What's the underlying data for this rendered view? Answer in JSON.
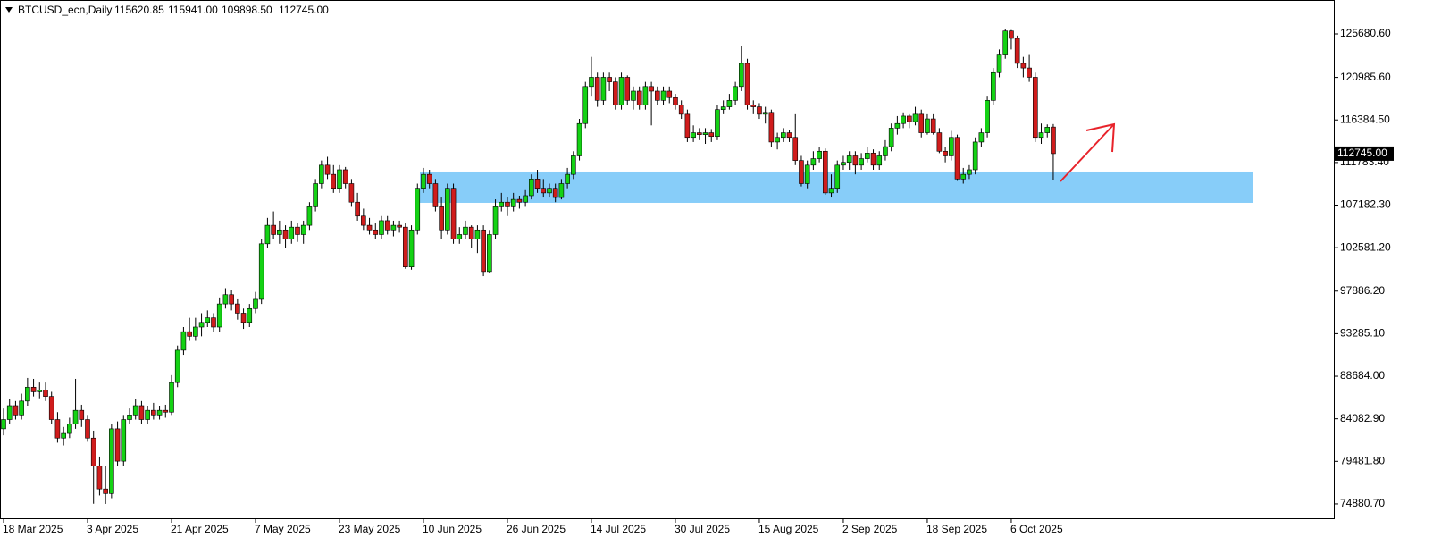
{
  "chart_data": {
    "type": "candlestick",
    "symbol": "BTCUSD_ecn,Daily",
    "last_bar_labels": [
      "115620.85",
      "115941.00",
      "109898.50",
      "112745.00"
    ],
    "up_color": "#14d214",
    "down_color": "#d01c1c",
    "ylim": [
      73330,
      129350
    ],
    "yticks": [
      {
        "value": 125680.6,
        "label": "125680.60"
      },
      {
        "value": 120985.6,
        "label": "120985.60"
      },
      {
        "value": 116384.5,
        "label": "116384.50"
      },
      {
        "value": 111783.4,
        "label": "111783.40"
      },
      {
        "value": 107182.3,
        "label": "107182.30"
      },
      {
        "value": 102581.2,
        "label": "102581.20"
      },
      {
        "value": 97886.2,
        "label": "97886.20"
      },
      {
        "value": 93285.1,
        "label": "93285.10"
      },
      {
        "value": 88684,
        "label": "88684.00"
      },
      {
        "value": 84082.9,
        "label": "84082.90"
      },
      {
        "value": 79481.8,
        "label": "79481.80"
      },
      {
        "value": 74880.7,
        "label": "74880.70"
      }
    ],
    "xticks": [
      {
        "value": 0,
        "label": "18 Mar 2025"
      },
      {
        "value": 14,
        "label": "3 Apr 2025"
      },
      {
        "value": 28,
        "label": "21 Apr 2025"
      },
      {
        "value": 42,
        "label": "7 May 2025"
      },
      {
        "value": 56,
        "label": "23 May 2025"
      },
      {
        "value": 70,
        "label": "10 Jun 2025"
      },
      {
        "value": 84,
        "label": "26 Jun 2025"
      },
      {
        "value": 98,
        "label": "14 Jul 2025"
      },
      {
        "value": 112,
        "label": "30 Jul 2025"
      },
      {
        "value": 126,
        "label": "15 Aug 2025"
      },
      {
        "value": 140,
        "label": "2 Sep 2025"
      },
      {
        "value": 154,
        "label": "18 Sep 2025"
      },
      {
        "value": 168,
        "label": "6 Oct 2025"
      }
    ],
    "price_label": {
      "value": 112745,
      "label": "112745.00"
    },
    "zone": {
      "low": 107427,
      "high": 110807,
      "color": "#87cdf9"
    },
    "ohlc": [
      [
        83000,
        85200,
        82300,
        84000
      ],
      [
        84000,
        86200,
        83500,
        85500
      ],
      [
        85500,
        86000,
        84000,
        84500
      ],
      [
        84500,
        86800,
        84000,
        86000
      ],
      [
        86000,
        88500,
        85500,
        87500
      ],
      [
        87500,
        88400,
        86500,
        87000
      ],
      [
        87000,
        88000,
        86300,
        87200
      ],
      [
        87200,
        88000,
        86000,
        86500
      ],
      [
        86500,
        87000,
        83500,
        84000
      ],
      [
        84000,
        84800,
        81500,
        82000
      ],
      [
        82000,
        83200,
        81200,
        82500
      ],
      [
        82500,
        84200,
        82000,
        83500
      ],
      [
        83500,
        88400,
        83000,
        85000
      ],
      [
        85000,
        85600,
        83200,
        84000
      ],
      [
        84000,
        84500,
        81600,
        82000
      ],
      [
        82000,
        82800,
        74900,
        79000
      ],
      [
        79000,
        80000,
        75800,
        76500
      ],
      [
        76500,
        79000,
        74880,
        76000
      ],
      [
        76000,
        83500,
        75500,
        83000
      ],
      [
        83000,
        83800,
        79000,
        79500
      ],
      [
        79500,
        84500,
        79000,
        84000
      ],
      [
        84000,
        85200,
        83500,
        84500
      ],
      [
        84500,
        86200,
        84000,
        85500
      ],
      [
        85500,
        86000,
        83500,
        84000
      ],
      [
        84000,
        85500,
        83500,
        85000
      ],
      [
        85000,
        85800,
        84000,
        84500
      ],
      [
        84500,
        85500,
        84000,
        85000
      ],
      [
        85000,
        85600,
        84200,
        84800
      ],
      [
        84800,
        88800,
        84500,
        88000
      ],
      [
        88000,
        92000,
        87500,
        91500
      ],
      [
        91500,
        94000,
        91000,
        93500
      ],
      [
        93500,
        95000,
        92500,
        93000
      ],
      [
        93000,
        95000,
        92500,
        94000
      ],
      [
        94000,
        95500,
        93000,
        94500
      ],
      [
        94500,
        95800,
        94000,
        95000
      ],
      [
        95000,
        95500,
        93500,
        94000
      ],
      [
        94000,
        97200,
        93500,
        96500
      ],
      [
        96500,
        98200,
        96000,
        97500
      ],
      [
        97500,
        98000,
        95800,
        96500
      ],
      [
        96500,
        97000,
        94800,
        95500
      ],
      [
        95500,
        96000,
        93800,
        94500
      ],
      [
        94500,
        96500,
        94000,
        96000
      ],
      [
        96000,
        97800,
        95500,
        97000
      ],
      [
        97000,
        103500,
        96500,
        103000
      ],
      [
        103000,
        105800,
        102500,
        105000
      ],
      [
        105000,
        106500,
        103500,
        104000
      ],
      [
        104000,
        105500,
        103000,
        104500
      ],
      [
        104500,
        105000,
        102500,
        103500
      ],
      [
        103500,
        105500,
        103000,
        104800
      ],
      [
        104800,
        105200,
        103200,
        104000
      ],
      [
        104000,
        105500,
        103000,
        105000
      ],
      [
        105000,
        107500,
        104500,
        107000
      ],
      [
        107000,
        110000,
        106500,
        109500
      ],
      [
        109500,
        112000,
        109000,
        111500
      ],
      [
        111500,
        112400,
        110000,
        110500
      ],
      [
        110500,
        111500,
        108500,
        109000
      ],
      [
        109000,
        111500,
        108500,
        111000
      ],
      [
        111000,
        111300,
        109000,
        109500
      ],
      [
        109500,
        110000,
        107000,
        107500
      ],
      [
        107500,
        108500,
        105500,
        106000
      ],
      [
        106000,
        106800,
        104500,
        105000
      ],
      [
        105000,
        105800,
        104000,
        104500
      ],
      [
        104500,
        105200,
        103500,
        104000
      ],
      [
        104000,
        106000,
        103500,
        105500
      ],
      [
        105500,
        106000,
        104000,
        104500
      ],
      [
        104500,
        105500,
        103800,
        105000
      ],
      [
        105000,
        105500,
        104200,
        104800
      ],
      [
        104800,
        105200,
        100300,
        100500
      ],
      [
        100500,
        105000,
        100200,
        104500
      ],
      [
        104500,
        109500,
        104000,
        109000
      ],
      [
        109000,
        111200,
        108500,
        110500
      ],
      [
        110500,
        111000,
        109000,
        109500
      ],
      [
        109500,
        110000,
        106500,
        107000
      ],
      [
        107000,
        108000,
        103500,
        104500
      ],
      [
        104500,
        109500,
        104000,
        109000
      ],
      [
        109000,
        109500,
        103000,
        103500
      ],
      [
        103500,
        104800,
        103000,
        104000
      ],
      [
        104000,
        105500,
        103500,
        104800
      ],
      [
        104800,
        105000,
        102500,
        103500
      ],
      [
        103500,
        105000,
        102000,
        104500
      ],
      [
        104500,
        105000,
        99500,
        100000
      ],
      [
        100000,
        104500,
        99800,
        104000
      ],
      [
        104000,
        107800,
        103500,
        107000
      ],
      [
        107000,
        108500,
        106500,
        107500
      ],
      [
        107500,
        108000,
        106000,
        107000
      ],
      [
        107000,
        108500,
        106500,
        107800
      ],
      [
        107800,
        108200,
        106800,
        107500
      ],
      [
        107500,
        108800,
        107000,
        108200
      ],
      [
        108200,
        110500,
        107800,
        110000
      ],
      [
        110000,
        111000,
        108500,
        109000
      ],
      [
        109000,
        110000,
        108000,
        108500
      ],
      [
        108500,
        109500,
        108000,
        109000
      ],
      [
        109000,
        109500,
        107500,
        108000
      ],
      [
        108000,
        110000,
        107800,
        109500
      ],
      [
        109500,
        111200,
        109000,
        110500
      ],
      [
        110500,
        113000,
        110000,
        112500
      ],
      [
        112500,
        116500,
        112000,
        116000
      ],
      [
        116000,
        120500,
        115500,
        120000
      ],
      [
        120000,
        123200,
        119000,
        121000
      ],
      [
        121000,
        121500,
        117800,
        118500
      ],
      [
        118500,
        121500,
        118000,
        121000
      ],
      [
        121000,
        121500,
        119500,
        120500
      ],
      [
        120500,
        121000,
        117500,
        118000
      ],
      [
        118000,
        121500,
        117500,
        121000
      ],
      [
        121000,
        121200,
        118000,
        118500
      ],
      [
        118500,
        120000,
        117500,
        119500
      ],
      [
        119500,
        120000,
        117500,
        118000
      ],
      [
        118000,
        120500,
        117500,
        120000
      ],
      [
        120000,
        120500,
        115800,
        119500
      ],
      [
        119500,
        120000,
        118000,
        118500
      ],
      [
        118500,
        120000,
        118000,
        119500
      ],
      [
        119500,
        120000,
        118200,
        118800
      ],
      [
        118800,
        119200,
        117500,
        118000
      ],
      [
        118000,
        118500,
        116500,
        117000
      ],
      [
        117000,
        117500,
        114000,
        114500
      ],
      [
        114500,
        115800,
        114000,
        115000
      ],
      [
        115000,
        115500,
        114200,
        114800
      ],
      [
        114800,
        115500,
        113800,
        115000
      ],
      [
        115000,
        115400,
        114000,
        114600
      ],
      [
        114600,
        118000,
        114200,
        117500
      ],
      [
        117500,
        118500,
        117000,
        117800
      ],
      [
        117800,
        119200,
        117500,
        118500
      ],
      [
        118500,
        120500,
        118000,
        120000
      ],
      [
        120000,
        124400,
        119500,
        122500
      ],
      [
        122500,
        123000,
        117500,
        118000
      ],
      [
        118000,
        118500,
        117000,
        117800
      ],
      [
        117800,
        118200,
        116500,
        117000
      ],
      [
        117000,
        117800,
        116000,
        117200
      ],
      [
        117200,
        117500,
        113500,
        114000
      ],
      [
        114000,
        115000,
        113200,
        114500
      ],
      [
        114500,
        115500,
        114000,
        115000
      ],
      [
        115000,
        115300,
        114000,
        114500
      ],
      [
        114500,
        117000,
        111500,
        112000
      ],
      [
        112000,
        112500,
        109200,
        109500
      ],
      [
        109500,
        112000,
        109000,
        111500
      ],
      [
        111500,
        113000,
        111000,
        112200
      ],
      [
        112200,
        113500,
        111800,
        113000
      ],
      [
        113000,
        113300,
        108300,
        108500
      ],
      [
        108500,
        110500,
        108000,
        109000
      ],
      [
        109000,
        112000,
        108500,
        111500
      ],
      [
        111500,
        112500,
        111000,
        111800
      ],
      [
        111800,
        113000,
        111000,
        112500
      ],
      [
        112500,
        113000,
        110500,
        111500
      ],
      [
        111500,
        112800,
        111000,
        112200
      ],
      [
        112200,
        113500,
        111800,
        112800
      ],
      [
        112800,
        113200,
        111000,
        111500
      ],
      [
        111500,
        113000,
        111000,
        112500
      ],
      [
        112500,
        114200,
        112000,
        113500
      ],
      [
        113500,
        116000,
        113000,
        115500
      ],
      [
        115500,
        116800,
        114800,
        116000
      ],
      [
        116000,
        117200,
        115500,
        116800
      ],
      [
        116800,
        117000,
        115500,
        116200
      ],
      [
        116200,
        117800,
        115800,
        117000
      ],
      [
        117000,
        117500,
        114500,
        115000
      ],
      [
        115000,
        117000,
        114800,
        116500
      ],
      [
        116500,
        117000,
        114800,
        115000
      ],
      [
        115000,
        115500,
        112800,
        113000
      ],
      [
        113000,
        113500,
        111800,
        112500
      ],
      [
        112500,
        115200,
        112000,
        114500
      ],
      [
        114500,
        114800,
        109800,
        110000
      ],
      [
        110000,
        111200,
        109500,
        110500
      ],
      [
        110500,
        111500,
        110000,
        111000
      ],
      [
        111000,
        114500,
        110500,
        114000
      ],
      [
        114000,
        115500,
        113500,
        115000
      ],
      [
        115000,
        119000,
        114500,
        118500
      ],
      [
        118500,
        122000,
        118000,
        121500
      ],
      [
        121500,
        124000,
        121000,
        123500
      ],
      [
        123500,
        126200,
        123000,
        126000
      ],
      [
        126000,
        126100,
        124000,
        125200
      ],
      [
        125200,
        125500,
        122000,
        122500
      ],
      [
        122500,
        123200,
        121000,
        122000
      ],
      [
        122000,
        123500,
        120500,
        121000
      ],
      [
        121000,
        121500,
        114000,
        114500
      ],
      [
        114500,
        116000,
        113800,
        115000
      ],
      [
        115000,
        115900,
        114500,
        115600
      ],
      [
        115620.85,
        115941,
        109898.5,
        112745
      ]
    ]
  }
}
